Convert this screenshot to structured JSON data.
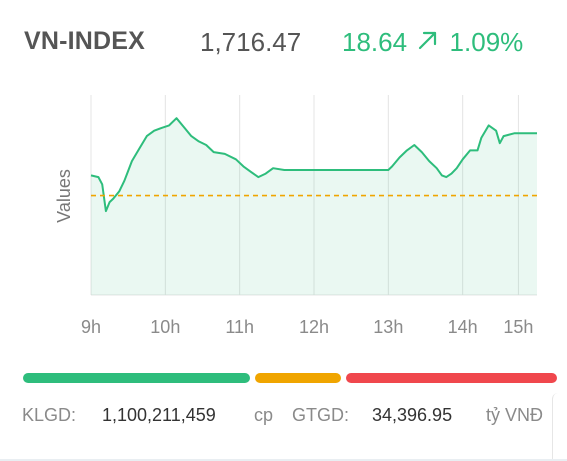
{
  "header": {
    "index_name": "VN-INDEX",
    "index_value": "1,716.47",
    "change_points": "18.64",
    "change_arrow_icon": "arrow-up-right-icon",
    "change_percent": "1.09%"
  },
  "colors": {
    "up": "#2ebd7c",
    "reference": "#f0a500",
    "down": "#f0474d"
  },
  "chart_data": {
    "type": "area",
    "ylabel": "Values",
    "x_ticks": [
      "9h",
      "10h",
      "11h",
      "12h",
      "13h",
      "14h",
      "15h"
    ],
    "x_tick_hours": [
      9,
      10,
      11,
      12,
      13,
      14,
      14.75
    ],
    "x_range_hours": [
      9,
      15
    ],
    "reference_value": 1697.83,
    "y_range": [
      1670,
      1726
    ],
    "grid": "vertical",
    "series": [
      {
        "points": [
          [
            9.0,
            1703.5
          ],
          [
            9.1,
            1703.0
          ],
          [
            9.15,
            1701.0
          ],
          [
            9.2,
            1693.5
          ],
          [
            9.25,
            1696.0
          ],
          [
            9.3,
            1697.0
          ],
          [
            9.38,
            1699.0
          ],
          [
            9.45,
            1702.0
          ],
          [
            9.55,
            1707.5
          ],
          [
            9.65,
            1711.0
          ],
          [
            9.75,
            1714.5
          ],
          [
            9.85,
            1716.0
          ],
          [
            9.95,
            1716.8
          ],
          [
            10.05,
            1717.5
          ],
          [
            10.15,
            1719.5
          ],
          [
            10.25,
            1717.0
          ],
          [
            10.35,
            1714.5
          ],
          [
            10.45,
            1713.0
          ],
          [
            10.55,
            1712.0
          ],
          [
            10.65,
            1710.0
          ],
          [
            10.8,
            1709.5
          ],
          [
            10.95,
            1708.0
          ],
          [
            11.05,
            1706.0
          ],
          [
            11.15,
            1704.5
          ],
          [
            11.25,
            1703.0
          ],
          [
            11.35,
            1704.0
          ],
          [
            11.45,
            1705.5
          ],
          [
            11.6,
            1705.0
          ],
          [
            11.8,
            1705.0
          ],
          [
            12.2,
            1705.0
          ],
          [
            12.6,
            1705.0
          ],
          [
            13.0,
            1705.0
          ],
          [
            13.05,
            1706.0
          ],
          [
            13.15,
            1708.5
          ],
          [
            13.25,
            1710.5
          ],
          [
            13.35,
            1712.0
          ],
          [
            13.45,
            1710.0
          ],
          [
            13.55,
            1707.5
          ],
          [
            13.65,
            1705.5
          ],
          [
            13.72,
            1703.5
          ],
          [
            13.78,
            1703.0
          ],
          [
            13.85,
            1704.0
          ],
          [
            13.92,
            1705.5
          ],
          [
            14.0,
            1708.0
          ],
          [
            14.1,
            1710.5
          ],
          [
            14.2,
            1710.5
          ],
          [
            14.25,
            1714.0
          ],
          [
            14.35,
            1717.5
          ],
          [
            14.45,
            1716.0
          ],
          [
            14.5,
            1712.5
          ],
          [
            14.55,
            1714.5
          ],
          [
            14.7,
            1715.3
          ],
          [
            15.0,
            1715.3
          ]
        ]
      }
    ]
  },
  "breadth_bar": {
    "advancing_fraction": 0.43,
    "unchanged_fraction": 0.17,
    "declining_fraction": 0.4
  },
  "footer": {
    "volume_label": "KLGD:",
    "volume_value": "1,100,211,459",
    "volume_unit": "cp",
    "value_label": "GTGD:",
    "value_value": "34,396.95",
    "value_unit": "tỷ VNĐ"
  }
}
